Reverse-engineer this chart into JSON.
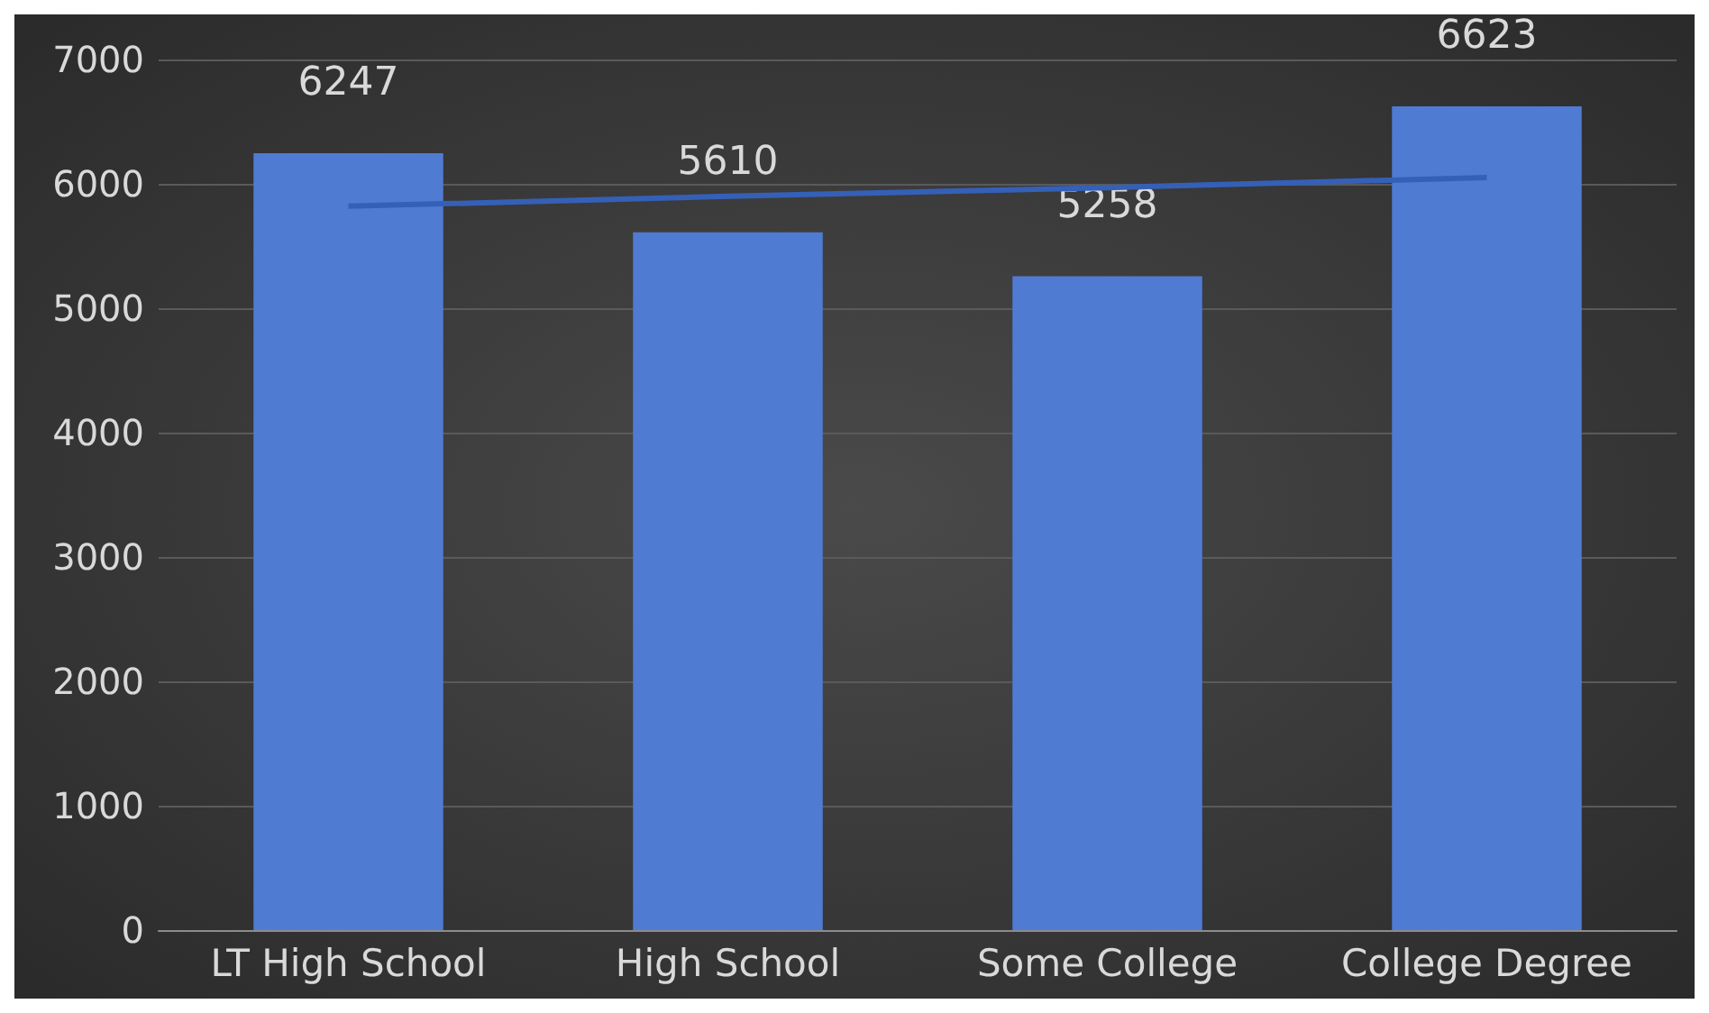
{
  "chart_data": {
    "type": "bar",
    "categories": [
      "LT High School",
      "High School",
      "Some College",
      "College Degree"
    ],
    "series": [
      {
        "color": "#4f7bd3",
        "values": [
          6247,
          5610,
          5258,
          6623
        ],
        "data_labels": true
      },
      {
        "type": "line",
        "color": "#3560b8",
        "values": [
          5820,
          5900,
          5970,
          6050
        ]
      }
    ],
    "ylim": [
      0,
      7000
    ],
    "yticks": [
      0,
      1000,
      2000,
      3000,
      4000,
      5000,
      6000,
      7000
    ],
    "grid": "y"
  }
}
